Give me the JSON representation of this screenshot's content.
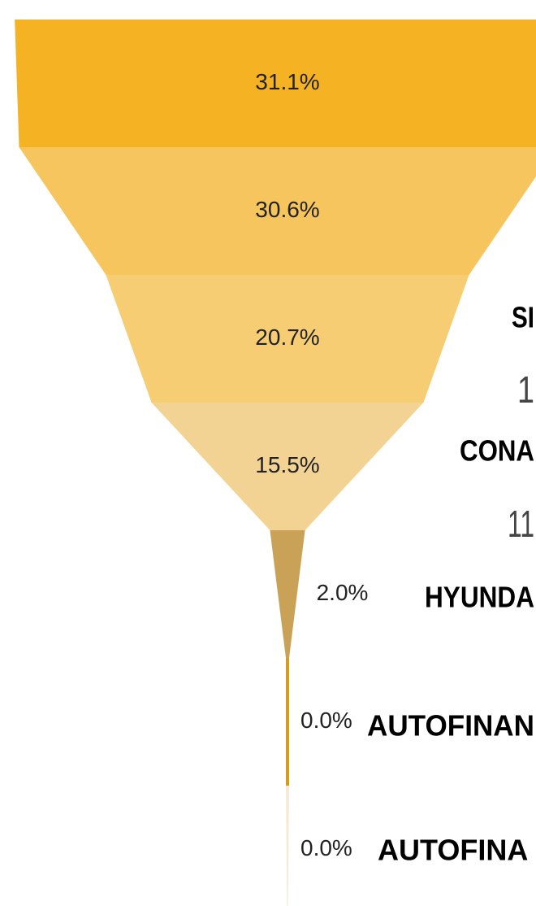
{
  "chart_data": {
    "type": "funnel",
    "values": [
      31.1,
      30.6,
      20.7,
      15.5,
      2.0,
      0.0,
      0.0
    ],
    "value_labels": [
      "31.1%",
      "30.6%",
      "20.7%",
      "15.5%",
      "2.0%",
      "0.0%",
      "0.0%"
    ],
    "colors": [
      "#f5b324",
      "#f7c55d",
      "#f7cd74",
      "#f2d393",
      "#c9a257",
      "#d69b22",
      "#f4ead6"
    ],
    "annotations": [
      "SI",
      "1",
      "CONA",
      "11",
      "HYUNDA",
      "AUTOFINAN",
      "AUTOFINA"
    ]
  }
}
